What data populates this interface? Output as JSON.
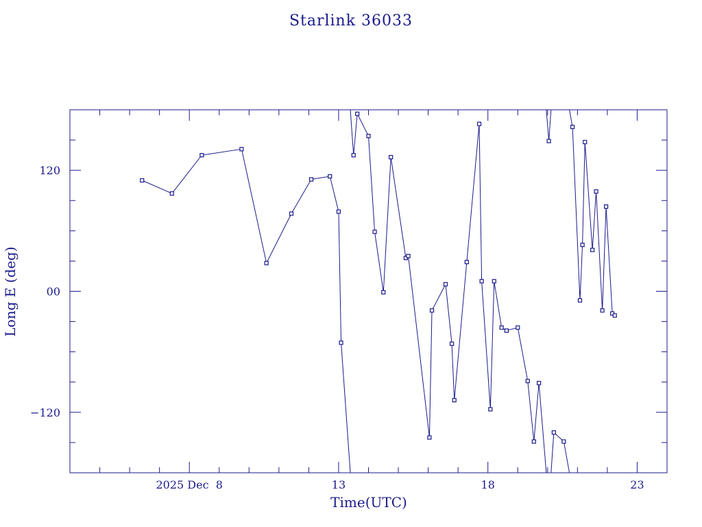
{
  "chart_data": {
    "type": "line",
    "title": "Starlink 36033",
    "xlabel": "Time(UTC)",
    "ylabel": "Long E (deg)",
    "xlim": [
      "2025-12-04",
      "2025-12-24"
    ],
    "ylim": [
      -180,
      180
    ],
    "wrap": [
      -180,
      180
    ],
    "x_ticks": [
      {
        "x": "2025-12-08",
        "label": "2025 Dec  8"
      },
      {
        "x": "2025-12-13",
        "label": "13"
      },
      {
        "x": "2025-12-18",
        "label": "18"
      },
      {
        "x": "2025-12-23",
        "label": "23"
      }
    ],
    "y_ticks": [
      {
        "y": 120,
        "label": "120"
      },
      {
        "y": 0,
        "label": "00"
      },
      {
        "y": -120,
        "label": "−120"
      }
    ],
    "grid": false,
    "colors": {
      "line": "#1a1a8c",
      "text": "#1a1a8c",
      "background": "#ffffff"
    },
    "series": [
      {
        "marker": "square",
        "points": [
          {
            "x": "2025-12-06 10:00",
            "y": 110
          },
          {
            "x": "2025-12-07 10:00",
            "y": 97
          },
          {
            "x": "2025-12-08 10:00",
            "y": 135
          },
          {
            "x": "2025-12-09 18:00",
            "y": 141
          },
          {
            "x": "2025-12-10 14:00",
            "y": 28
          },
          {
            "x": "2025-12-11 10:00",
            "y": 77
          },
          {
            "x": "2025-12-12 02:00",
            "y": 111
          },
          {
            "x": "2025-12-12 17:00",
            "y": 114
          },
          {
            "x": "2025-12-13 00:00",
            "y": 79
          },
          {
            "x": "2025-12-13 02:00",
            "y": -51
          },
          {
            "x": "2025-12-13 12:00",
            "y": 135
          },
          {
            "x": "2025-12-13 15:00",
            "y": 176
          },
          {
            "x": "2025-12-14 00:00",
            "y": 154
          },
          {
            "x": "2025-12-14 05:00",
            "y": 59
          },
          {
            "x": "2025-12-14 12:00",
            "y": -1
          },
          {
            "x": "2025-12-14 18:00",
            "y": 133
          },
          {
            "x": "2025-12-15 06:00",
            "y": 33
          },
          {
            "x": "2025-12-15 08:00",
            "y": 35
          },
          {
            "x": "2025-12-16 01:00",
            "y": -145
          },
          {
            "x": "2025-12-16 03:00",
            "y": -19
          },
          {
            "x": "2025-12-16 14:00",
            "y": 7
          },
          {
            "x": "2025-12-16 19:00",
            "y": -52
          },
          {
            "x": "2025-12-16 21:00",
            "y": -108
          },
          {
            "x": "2025-12-17 07:00",
            "y": 29
          },
          {
            "x": "2025-12-17 17:00",
            "y": 166
          },
          {
            "x": "2025-12-17 19:00",
            "y": 10
          },
          {
            "x": "2025-12-18 02:00",
            "y": -117
          },
          {
            "x": "2025-12-18 05:00",
            "y": 10
          },
          {
            "x": "2025-12-18 11:00",
            "y": -36
          },
          {
            "x": "2025-12-18 15:00",
            "y": -39
          },
          {
            "x": "2025-12-19 00:00",
            "y": -36
          },
          {
            "x": "2025-12-19 08:00",
            "y": -89
          },
          {
            "x": "2025-12-19 13:00",
            "y": -149
          },
          {
            "x": "2025-12-19 17:00",
            "y": -91
          },
          {
            "x": "2025-12-20 01:00",
            "y": 149
          },
          {
            "x": "2025-12-20 05:00",
            "y": -140
          },
          {
            "x": "2025-12-20 13:00",
            "y": -149
          },
          {
            "x": "2025-12-20 20:00",
            "y": 163
          },
          {
            "x": "2025-12-21 02:00",
            "y": -9
          },
          {
            "x": "2025-12-21 04:00",
            "y": 46
          },
          {
            "x": "2025-12-21 06:00",
            "y": 148
          },
          {
            "x": "2025-12-21 12:00",
            "y": 41
          },
          {
            "x": "2025-12-21 15:00",
            "y": 99
          },
          {
            "x": "2025-12-21 20:00",
            "y": -19
          },
          {
            "x": "2025-12-21 23:00",
            "y": 84
          },
          {
            "x": "2025-12-22 04:00",
            "y": -22
          },
          {
            "x": "2025-12-22 06:00",
            "y": -24
          }
        ]
      }
    ]
  }
}
